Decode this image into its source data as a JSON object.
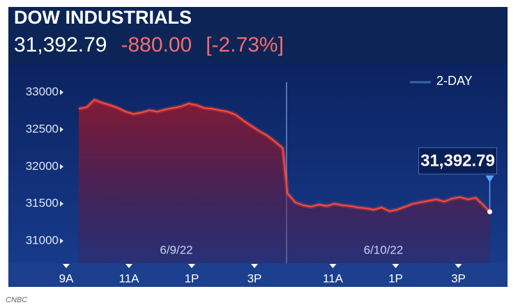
{
  "chart_data": {
    "type": "line",
    "title": "DOW INDUSTRIALS",
    "last_price": "31,392.79",
    "change": "-880.00",
    "change_percent": "[-2.73%]",
    "source": "CNBC",
    "dates": [
      "6/9/22",
      "6/10/22"
    ],
    "x": [
      0.4,
      0.65,
      0.9,
      1.15,
      1.4,
      1.65,
      1.9,
      2.15,
      2.4,
      2.65,
      2.9,
      3.15,
      3.4,
      3.65,
      3.9,
      4.15,
      4.4,
      4.65,
      4.9,
      5.15,
      5.4,
      5.65,
      5.9,
      6.15,
      6.4,
      6.65,
      6.9,
      7.05,
      7.3,
      7.55,
      7.8,
      8.05,
      8.3,
      8.55,
      8.8,
      9.05,
      9.3,
      9.55,
      9.8,
      10.05,
      10.3,
      10.55,
      10.8,
      11.05,
      11.3,
      11.55,
      11.8,
      12.05,
      12.3,
      12.55,
      12.8,
      13.05,
      13.3,
      13.5
    ],
    "series": [
      {
        "name": "2-DAY",
        "color": "#ff4b3a",
        "values": [
          32780,
          32800,
          32900,
          32860,
          32830,
          32790,
          32740,
          32710,
          32730,
          32760,
          32740,
          32770,
          32790,
          32810,
          32850,
          32830,
          32790,
          32780,
          32760,
          32740,
          32700,
          32620,
          32550,
          32480,
          32420,
          32340,
          32250,
          31640,
          31520,
          31480,
          31460,
          31490,
          31470,
          31500,
          31480,
          31470,
          31450,
          31440,
          31420,
          31450,
          31400,
          31420,
          31460,
          31500,
          31520,
          31540,
          31560,
          31530,
          31570,
          31590,
          31560,
          31580,
          31480,
          31392.79
        ]
      }
    ],
    "xlim": [
      0,
      14
    ],
    "xticks": [
      {
        "value": 0,
        "label": "9A"
      },
      {
        "value": 2,
        "label": "11A"
      },
      {
        "value": 4,
        "label": "1P"
      },
      {
        "value": 6,
        "label": "3P"
      },
      {
        "value": 8.5,
        "label": "11A"
      },
      {
        "value": 10.5,
        "label": "1P"
      },
      {
        "value": 12.5,
        "label": "3P"
      }
    ],
    "ylim": [
      30700,
      33400
    ],
    "yticks": [
      31000,
      31500,
      32000,
      32500,
      33000
    ]
  }
}
